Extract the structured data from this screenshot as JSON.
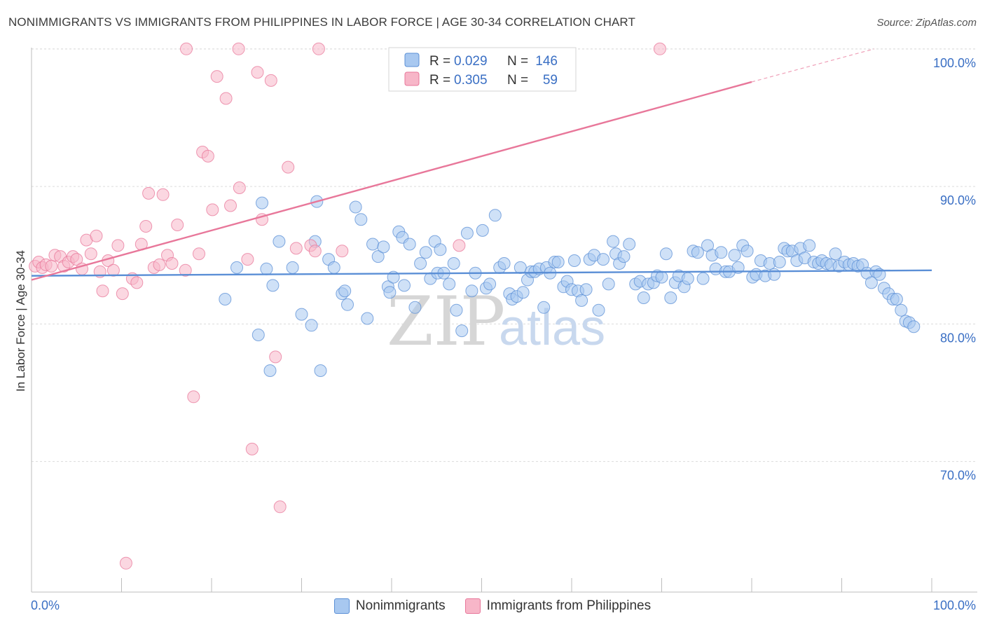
{
  "header": {
    "title": "NONIMMIGRANTS VS IMMIGRANTS FROM PHILIPPINES IN LABOR FORCE | AGE 30-34 CORRELATION CHART",
    "source": "Source: ZipAtlas.com"
  },
  "watermark": {
    "zip": "ZIP",
    "atlas": "atlas"
  },
  "legend": {
    "rows": [
      {
        "r_label": "R =",
        "r_value": "0.029",
        "n_label": "N =",
        "n_value": "146",
        "color": "#a8c8f0"
      },
      {
        "r_label": "R =",
        "r_value": "0.305",
        "n_label": "N =",
        "n_value": "59",
        "color": "#f7b6c8"
      }
    ]
  },
  "bottom_legend": {
    "items": [
      {
        "label": "Nonimmigrants",
        "color": "#a8c8f0"
      },
      {
        "label": "Immigrants from Philippines",
        "color": "#f7b6c8"
      }
    ]
  },
  "chart_data": {
    "type": "scatter",
    "title": "NONIMMIGRANTS VS IMMIGRANTS FROM PHILIPPINES IN LABOR FORCE | AGE 30-34 CORRELATION CHART",
    "xlabel": "",
    "ylabel": "In Labor Force | Age 30-34",
    "xlim": [
      0,
      100
    ],
    "ylim": [
      60.5,
      100.5
    ],
    "x_tick_labels": [
      "0.0%",
      "100.0%"
    ],
    "y_ticks": [
      70,
      80,
      90,
      100
    ],
    "y_tick_labels": [
      "70.0%",
      "80.0%",
      "90.0%",
      "100.0%"
    ],
    "grid": true,
    "legend_position": "top-center",
    "series": [
      {
        "name": "Nonimmigrants",
        "color": "#5b8fd6",
        "fill": "#a8c8f0",
        "trend": {
          "x": [
            0,
            100
          ],
          "y": [
            83.5,
            83.9
          ]
        },
        "points": [
          [
            21.5,
            81.8
          ],
          [
            22.8,
            84.1
          ],
          [
            25.2,
            79.2
          ],
          [
            25.6,
            88.8
          ],
          [
            26.1,
            84.0
          ],
          [
            26.5,
            76.6
          ],
          [
            26.8,
            82.8
          ],
          [
            27.5,
            86.0
          ],
          [
            29.0,
            84.1
          ],
          [
            30.0,
            80.7
          ],
          [
            31.1,
            79.9
          ],
          [
            31.5,
            86.0
          ],
          [
            31.7,
            88.9
          ],
          [
            32.1,
            76.6
          ],
          [
            33.0,
            84.7
          ],
          [
            33.6,
            84.1
          ],
          [
            34.5,
            82.2
          ],
          [
            34.8,
            82.4
          ],
          [
            35.1,
            81.4
          ],
          [
            36.0,
            88.5
          ],
          [
            36.6,
            87.6
          ],
          [
            37.3,
            80.4
          ],
          [
            37.9,
            85.8
          ],
          [
            38.5,
            84.9
          ],
          [
            39.1,
            85.6
          ],
          [
            39.6,
            82.7
          ],
          [
            39.8,
            82.3
          ],
          [
            40.2,
            83.4
          ],
          [
            40.8,
            86.7
          ],
          [
            41.2,
            86.3
          ],
          [
            41.4,
            82.8
          ],
          [
            42.0,
            85.8
          ],
          [
            42.6,
            81.2
          ],
          [
            43.2,
            84.4
          ],
          [
            43.8,
            85.2
          ],
          [
            44.3,
            83.3
          ],
          [
            44.8,
            86.0
          ],
          [
            45.1,
            83.7
          ],
          [
            45.4,
            85.4
          ],
          [
            45.8,
            83.7
          ],
          [
            46.4,
            82.9
          ],
          [
            46.9,
            84.4
          ],
          [
            47.2,
            81.0
          ],
          [
            47.8,
            79.5
          ],
          [
            48.4,
            86.6
          ],
          [
            48.9,
            82.4
          ],
          [
            49.3,
            83.7
          ],
          [
            50.1,
            86.8
          ],
          [
            50.5,
            82.6
          ],
          [
            50.9,
            82.9
          ],
          [
            51.5,
            87.9
          ],
          [
            52.0,
            84.1
          ],
          [
            52.5,
            84.4
          ],
          [
            53.1,
            82.2
          ],
          [
            53.4,
            81.8
          ],
          [
            53.9,
            82.0
          ],
          [
            54.3,
            84.1
          ],
          [
            54.6,
            82.3
          ],
          [
            55.1,
            83.2
          ],
          [
            55.5,
            83.8
          ],
          [
            55.9,
            83.8
          ],
          [
            56.4,
            84.0
          ],
          [
            56.9,
            81.2
          ],
          [
            57.2,
            84.1
          ],
          [
            57.6,
            83.7
          ],
          [
            58.1,
            84.5
          ],
          [
            58.5,
            84.5
          ],
          [
            59.1,
            82.7
          ],
          [
            59.5,
            83.1
          ],
          [
            60.0,
            82.5
          ],
          [
            60.3,
            84.6
          ],
          [
            60.7,
            82.4
          ],
          [
            61.1,
            81.7
          ],
          [
            61.6,
            82.5
          ],
          [
            62.0,
            84.7
          ],
          [
            62.5,
            85.0
          ],
          [
            63.0,
            81.0
          ],
          [
            63.5,
            84.7
          ],
          [
            64.1,
            82.9
          ],
          [
            64.6,
            86.0
          ],
          [
            64.9,
            85.1
          ],
          [
            65.3,
            84.4
          ],
          [
            65.8,
            84.9
          ],
          [
            66.4,
            85.8
          ],
          [
            67.1,
            82.9
          ],
          [
            67.6,
            83.1
          ],
          [
            68.0,
            81.9
          ],
          [
            68.5,
            82.9
          ],
          [
            69.1,
            83.0
          ],
          [
            69.5,
            83.5
          ],
          [
            70.0,
            83.4
          ],
          [
            70.5,
            85.1
          ],
          [
            71.0,
            81.9
          ],
          [
            71.5,
            83.0
          ],
          [
            71.9,
            83.5
          ],
          [
            72.5,
            82.7
          ],
          [
            72.9,
            83.3
          ],
          [
            73.5,
            85.3
          ],
          [
            74.0,
            85.2
          ],
          [
            74.6,
            83.3
          ],
          [
            75.1,
            85.7
          ],
          [
            75.6,
            85.0
          ],
          [
            76.0,
            84.0
          ],
          [
            76.6,
            85.2
          ],
          [
            77.1,
            83.8
          ],
          [
            77.5,
            83.8
          ],
          [
            78.1,
            85.0
          ],
          [
            78.5,
            84.1
          ],
          [
            79.0,
            85.7
          ],
          [
            79.5,
            85.3
          ],
          [
            80.1,
            83.4
          ],
          [
            80.5,
            83.6
          ],
          [
            81.0,
            84.6
          ],
          [
            81.5,
            83.5
          ],
          [
            82.0,
            84.4
          ],
          [
            82.5,
            83.6
          ],
          [
            83.1,
            84.5
          ],
          [
            83.6,
            85.5
          ],
          [
            84.0,
            85.3
          ],
          [
            84.5,
            85.3
          ],
          [
            85.0,
            84.6
          ],
          [
            85.4,
            85.5
          ],
          [
            85.9,
            84.8
          ],
          [
            86.4,
            85.7
          ],
          [
            86.9,
            84.5
          ],
          [
            87.4,
            84.4
          ],
          [
            87.8,
            84.6
          ],
          [
            88.3,
            84.4
          ],
          [
            88.8,
            84.3
          ],
          [
            89.3,
            85.1
          ],
          [
            89.7,
            84.2
          ],
          [
            90.3,
            84.5
          ],
          [
            90.8,
            84.3
          ],
          [
            91.3,
            84.4
          ],
          [
            91.8,
            84.2
          ],
          [
            92.3,
            84.3
          ],
          [
            92.8,
            83.7
          ],
          [
            93.3,
            83.0
          ],
          [
            93.8,
            83.8
          ],
          [
            94.2,
            83.6
          ],
          [
            94.7,
            82.6
          ],
          [
            95.2,
            82.2
          ],
          [
            95.7,
            81.8
          ],
          [
            96.1,
            81.8
          ],
          [
            96.6,
            81.0
          ],
          [
            97.1,
            80.2
          ],
          [
            97.5,
            80.1
          ],
          [
            98.0,
            79.8
          ]
        ]
      },
      {
        "name": "Immigrants from Philippines",
        "color": "#e8779a",
        "fill": "#f7b6c8",
        "trend": {
          "x": [
            0,
            80
          ],
          "y": [
            83.2,
            97.6
          ]
        },
        "trend_dashed": {
          "x": [
            80,
            93.6
          ],
          "y": [
            97.6,
            100.0
          ]
        },
        "points": [
          [
            0.4,
            84.2
          ],
          [
            0.8,
            84.5
          ],
          [
            1.2,
            84.1
          ],
          [
            1.6,
            84.3
          ],
          [
            2.2,
            84.2
          ],
          [
            2.6,
            85.0
          ],
          [
            3.2,
            84.9
          ],
          [
            3.6,
            84.2
          ],
          [
            4.1,
            84.5
          ],
          [
            4.6,
            84.9
          ],
          [
            5.0,
            84.7
          ],
          [
            5.6,
            84.0
          ],
          [
            6.1,
            86.1
          ],
          [
            6.6,
            85.1
          ],
          [
            7.2,
            86.4
          ],
          [
            7.6,
            83.8
          ],
          [
            7.9,
            82.4
          ],
          [
            8.5,
            84.6
          ],
          [
            9.1,
            83.9
          ],
          [
            9.6,
            85.7
          ],
          [
            10.1,
            82.2
          ],
          [
            11.2,
            83.3
          ],
          [
            11.7,
            83.0
          ],
          [
            12.2,
            85.8
          ],
          [
            12.7,
            87.1
          ],
          [
            13.0,
            89.5
          ],
          [
            13.6,
            84.1
          ],
          [
            14.2,
            84.3
          ],
          [
            14.6,
            89.4
          ],
          [
            15.1,
            85.0
          ],
          [
            15.6,
            84.4
          ],
          [
            16.2,
            87.2
          ],
          [
            17.1,
            83.9
          ],
          [
            17.2,
            100.0
          ],
          [
            18.0,
            74.7
          ],
          [
            18.6,
            85.1
          ],
          [
            19.0,
            92.5
          ],
          [
            19.6,
            92.2
          ],
          [
            20.1,
            88.3
          ],
          [
            20.6,
            98.0
          ],
          [
            21.6,
            96.4
          ],
          [
            22.1,
            88.6
          ],
          [
            23.0,
            100.0
          ],
          [
            23.1,
            89.9
          ],
          [
            24.0,
            84.7
          ],
          [
            24.5,
            70.9
          ],
          [
            25.1,
            98.3
          ],
          [
            25.6,
            87.6
          ],
          [
            26.6,
            97.7
          ],
          [
            27.1,
            77.6
          ],
          [
            27.6,
            66.7
          ],
          [
            28.5,
            91.4
          ],
          [
            29.4,
            85.5
          ],
          [
            31.0,
            85.7
          ],
          [
            31.5,
            85.3
          ],
          [
            31.9,
            100.0
          ],
          [
            34.5,
            85.3
          ],
          [
            47.5,
            85.7
          ],
          [
            69.8,
            100.0
          ],
          [
            10.5,
            62.6
          ]
        ]
      }
    ]
  }
}
